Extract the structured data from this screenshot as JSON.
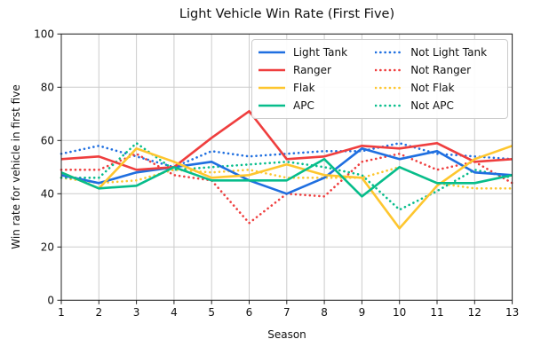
{
  "title": "Light Vehicle Win Rate (First Five)",
  "chart_data": {
    "type": "line",
    "title": "Light Vehicle Win Rate (First Five)",
    "xlabel": "Season",
    "ylabel": "Win rate for vehicle in first five",
    "x": [
      1,
      2,
      3,
      4,
      5,
      6,
      7,
      8,
      9,
      10,
      11,
      12,
      13
    ],
    "xlim": [
      1,
      13
    ],
    "ylim": [
      0,
      100
    ],
    "xticks": [
      1,
      2,
      3,
      4,
      5,
      6,
      7,
      8,
      9,
      10,
      11,
      12,
      13
    ],
    "yticks": [
      0,
      20,
      40,
      60,
      80,
      100
    ],
    "grid": true,
    "legend_position": "upper center, 2 columns, framed",
    "series": [
      {
        "name": "Light Tank",
        "color": "#1f6fe0",
        "style": "solid",
        "values": [
          47,
          44,
          48,
          50,
          52,
          45,
          40,
          46,
          57,
          53,
          56,
          48,
          47
        ]
      },
      {
        "name": "Ranger",
        "color": "#ef3e3e",
        "style": "solid",
        "values": [
          53,
          54,
          49,
          50,
          61,
          71,
          53,
          54,
          58,
          57,
          59,
          52,
          53
        ]
      },
      {
        "name": "Flak",
        "color": "#fec62e",
        "style": "solid",
        "values": [
          48,
          42,
          57,
          52,
          46,
          47,
          51,
          47,
          46,
          27,
          43,
          53,
          58
        ]
      },
      {
        "name": "APC",
        "color": "#07bd8b",
        "style": "solid",
        "values": [
          48,
          42,
          43,
          50,
          45,
          45,
          45,
          53,
          39,
          50,
          44,
          44,
          47
        ]
      },
      {
        "name": "Not Light Tank",
        "color": "#1f6fe0",
        "style": "dotted",
        "values": [
          55,
          58,
          54,
          50,
          56,
          54,
          55,
          56,
          56,
          59,
          55,
          54,
          53
        ]
      },
      {
        "name": "Not Ranger",
        "color": "#ef3e3e",
        "style": "dotted",
        "values": [
          49,
          49,
          55,
          47,
          45,
          29,
          40,
          39,
          52,
          55,
          49,
          52,
          44
        ]
      },
      {
        "name": "Not Flak",
        "color": "#fec62e",
        "style": "dotted",
        "values": [
          46,
          44,
          45,
          49,
          48,
          49,
          46,
          46,
          46,
          50,
          44,
          42,
          42
        ]
      },
      {
        "name": "Not APC",
        "color": "#07bd8b",
        "style": "dotted",
        "values": [
          46,
          46,
          59,
          49,
          50,
          51,
          52,
          50,
          47,
          34,
          41,
          49,
          46
        ]
      }
    ],
    "axis_color": "#222222",
    "grid_color": "#cccccc",
    "tick_label_color": "#111111"
  }
}
